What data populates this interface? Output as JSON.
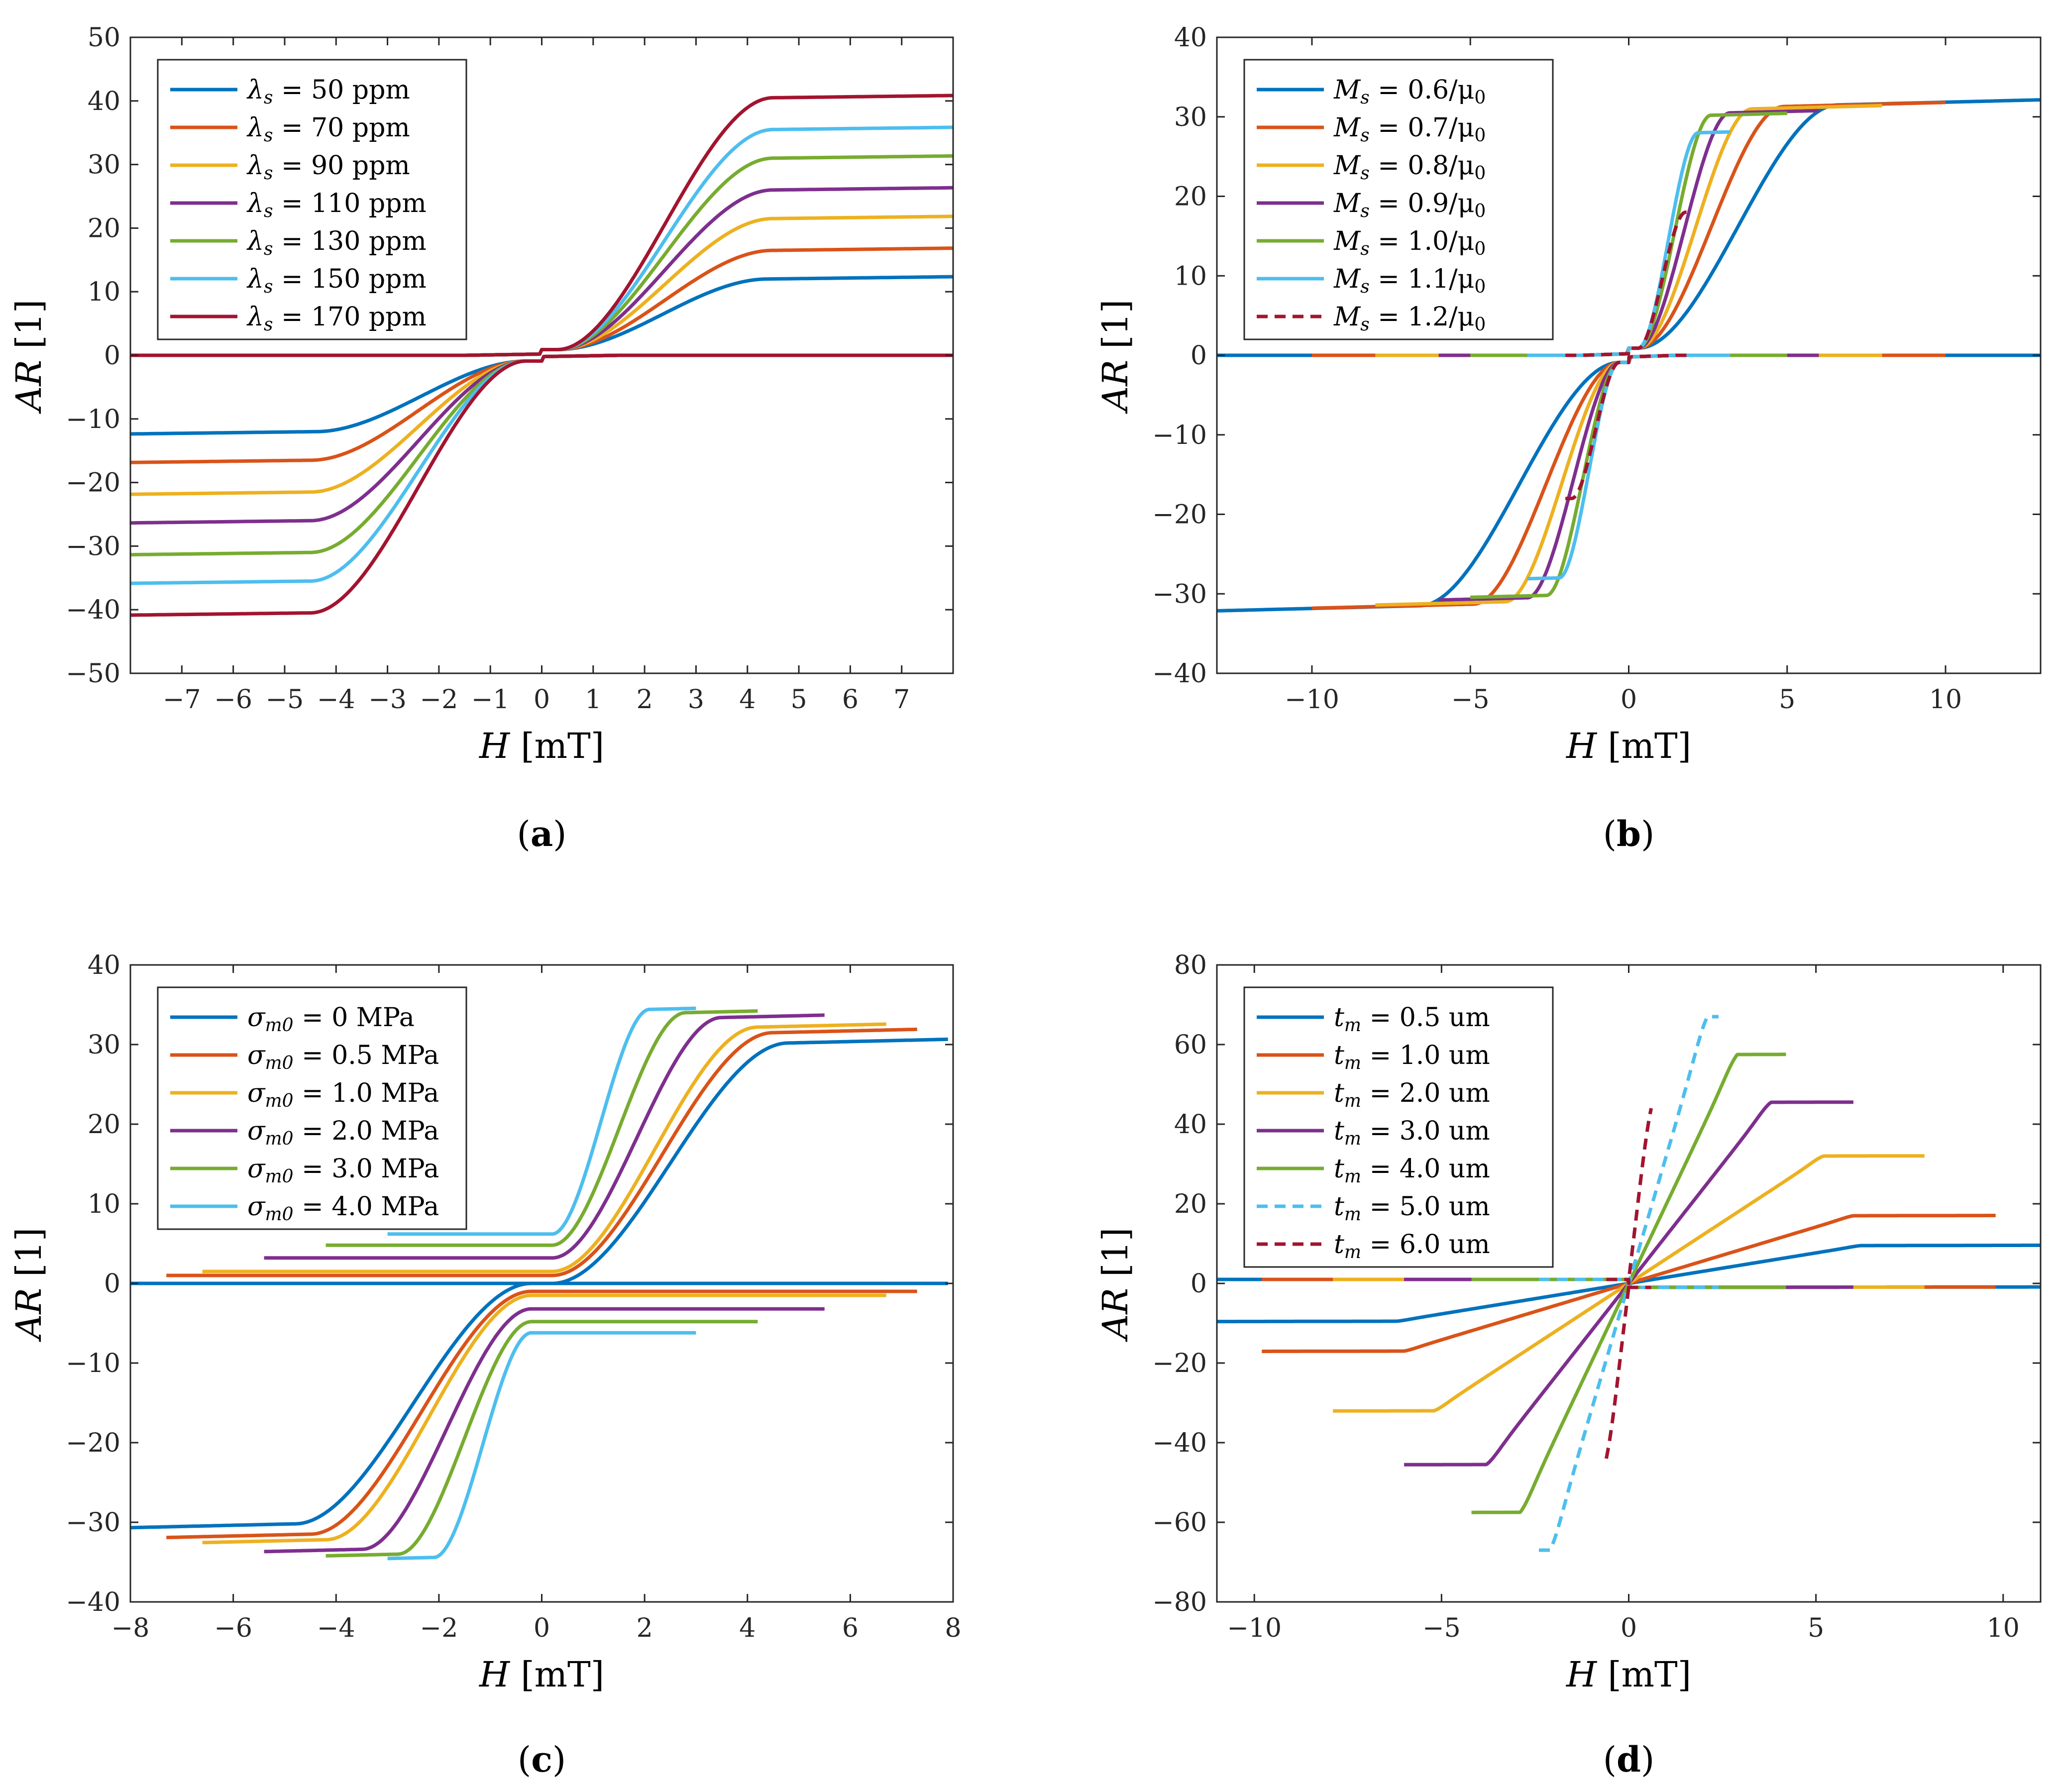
{
  "colors": [
    "#0072BD",
    "#D95319",
    "#EDB120",
    "#7E2F8E",
    "#77AC30",
    "#4DBEEE",
    "#A2142F"
  ],
  "chart_data": [
    {
      "id": "a",
      "type": "line",
      "caption_letter": "a",
      "xlabel_var": "H",
      "xlabel_unit": "[mT]",
      "ylabel_var": "AR",
      "ylabel_unit": "[1]",
      "xlim": [
        -8,
        8
      ],
      "ylim": [
        -50,
        50
      ],
      "xticks": [
        -7,
        -6,
        -5,
        -4,
        -3,
        -2,
        -1,
        0,
        1,
        2,
        3,
        4,
        5,
        6,
        7
      ],
      "yticks": [
        -50,
        -40,
        -30,
        -20,
        -10,
        0,
        10,
        20,
        30,
        40,
        50
      ],
      "legend_position": "top-left",
      "shape": "sat",
      "series": [
        {
          "sym": "λ",
          "sub": "s",
          "value": "50 ppm",
          "sat": 12,
          "hc": 0,
          "hk": 4.4,
          "xmin": -8,
          "xmax": 8,
          "r": 1,
          "dash": false
        },
        {
          "sym": "λ",
          "sub": "s",
          "value": "70 ppm",
          "sat": 16.5,
          "hc": 0,
          "hk": 4.5,
          "xmin": -8,
          "xmax": 8,
          "r": 1,
          "dash": false
        },
        {
          "sym": "λ",
          "sub": "s",
          "value": "90 ppm",
          "sat": 21.5,
          "hc": 0,
          "hk": 4.5,
          "xmin": -8,
          "xmax": 8,
          "r": 1,
          "dash": false
        },
        {
          "sym": "λ",
          "sub": "s",
          "value": "110 ppm",
          "sat": 26,
          "hc": 0,
          "hk": 4.5,
          "xmin": -8,
          "xmax": 8,
          "r": 1,
          "dash": false
        },
        {
          "sym": "λ",
          "sub": "s",
          "value": "130 ppm",
          "sat": 31,
          "hc": 0,
          "hk": 4.5,
          "xmin": -8,
          "xmax": 8,
          "r": 1,
          "dash": false
        },
        {
          "sym": "λ",
          "sub": "s",
          "value": "150 ppm",
          "sat": 35.5,
          "hc": 0,
          "hk": 4.5,
          "xmin": -8,
          "xmax": 8,
          "r": 1,
          "dash": false
        },
        {
          "sym": "λ",
          "sub": "s",
          "value": "170 ppm",
          "sat": 40.5,
          "hc": 0,
          "hk": 4.5,
          "xmin": -8,
          "xmax": 8,
          "r": 1,
          "dash": false
        }
      ]
    },
    {
      "id": "b",
      "type": "line",
      "caption_letter": "b",
      "xlabel_var": "H",
      "xlabel_unit": "[mT]",
      "ylabel_var": "AR",
      "ylabel_unit": "[1]",
      "xlim": [
        -13,
        13
      ],
      "ylim": [
        -40,
        40
      ],
      "xticks": [
        -10,
        -5,
        0,
        5,
        10
      ],
      "yticks": [
        -40,
        -30,
        -20,
        -10,
        0,
        10,
        20,
        30,
        40
      ],
      "legend_position": "top-left",
      "shape": "hys",
      "series": [
        {
          "sym": "M",
          "sub": "s",
          "value": "0.6/μ",
          "sub2": "0",
          "sat": 31.5,
          "hc": 0.6,
          "hk": 6.6,
          "xmin": -13,
          "xmax": 13,
          "r": 1,
          "dash": false
        },
        {
          "sym": "M",
          "sub": "s",
          "value": "0.7/μ",
          "sub2": "0",
          "sat": 31.3,
          "hc": 0.6,
          "hk": 4.9,
          "xmin": -10,
          "xmax": 10,
          "r": 1,
          "dash": false
        },
        {
          "sym": "M",
          "sub": "s",
          "value": "0.8/μ",
          "sub2": "0",
          "sat": 31,
          "hc": 0.6,
          "hk": 3.9,
          "xmin": -8,
          "xmax": 8,
          "r": 1,
          "dash": false
        },
        {
          "sym": "M",
          "sub": "s",
          "value": "0.9/μ",
          "sub2": "0",
          "sat": 30.5,
          "hc": 0.6,
          "hk": 3.2,
          "xmin": -6,
          "xmax": 6,
          "r": 1,
          "dash": false
        },
        {
          "sym": "M",
          "sub": "s",
          "value": "1.0/μ",
          "sub2": "0",
          "sat": 30.2,
          "hc": 0.6,
          "hk": 2.6,
          "xmin": -5,
          "xmax": 5,
          "r": 1,
          "dash": false
        },
        {
          "sym": "M",
          "sub": "s",
          "value": "1.1/μ",
          "sub2": "0",
          "sat": 28,
          "hc": 0.6,
          "hk": 2.2,
          "xmin": -3.2,
          "xmax": 3.2,
          "r": 1,
          "dash": false
        },
        {
          "sym": "M",
          "sub": "s",
          "value": "1.2/μ",
          "sub2": "0",
          "sat": 18,
          "hc": 0.6,
          "hk": 1.8,
          "xmin": -2,
          "xmax": 2,
          "r": 1,
          "dash": true
        }
      ]
    },
    {
      "id": "c",
      "type": "line",
      "caption_letter": "c",
      "xlabel_var": "H",
      "xlabel_unit": "[mT]",
      "ylabel_var": "AR",
      "ylabel_unit": "[1]",
      "xlim": [
        -8,
        8
      ],
      "ylim": [
        -40,
        40
      ],
      "xticks": [
        -8,
        -6,
        -4,
        -2,
        0,
        2,
        4,
        6,
        8
      ],
      "yticks": [
        -40,
        -30,
        -20,
        -10,
        0,
        10,
        20,
        30,
        40
      ],
      "legend_position": "top-left",
      "shape": "bias",
      "series": [
        {
          "sym": "σ",
          "sub": "m0",
          "value": "0 MPa",
          "sat": 30.5,
          "off": 0,
          "hc": 0.2,
          "hk": 4.8,
          "xmin": -8,
          "xmax": 7.9,
          "r": 1,
          "dash": false
        },
        {
          "sym": "σ",
          "sub": "m0",
          "value": "0.5 MPa",
          "sat": 30.8,
          "off": 1,
          "hc": 0.2,
          "hk": 4.5,
          "xmin": -7.3,
          "xmax": 7.3,
          "r": 1,
          "dash": false
        },
        {
          "sym": "σ",
          "sub": "m0",
          "value": "1.0 MPa",
          "sat": 31,
          "off": 1.5,
          "hc": 0.2,
          "hk": 4.2,
          "xmin": -6.6,
          "xmax": 6.7,
          "r": 1,
          "dash": false
        },
        {
          "sym": "σ",
          "sub": "m0",
          "value": "2.0 MPa",
          "sat": 30.5,
          "off": 3.2,
          "hc": 0.2,
          "hk": 3.5,
          "xmin": -5.4,
          "xmax": 5.5,
          "r": 1,
          "dash": false
        },
        {
          "sym": "σ",
          "sub": "m0",
          "value": "3.0 MPa",
          "sat": 29.5,
          "off": 4.8,
          "hc": 0.2,
          "hk": 2.8,
          "xmin": -4.2,
          "xmax": 4.2,
          "r": 1,
          "dash": false
        },
        {
          "sym": "σ",
          "sub": "m0",
          "value": "4.0 MPa",
          "sat": 28.5,
          "off": 6.2,
          "hc": 0.2,
          "hk": 2.1,
          "xmin": -3,
          "xmax": 3,
          "r": 1,
          "dash": false
        }
      ]
    },
    {
      "id": "d",
      "type": "line",
      "caption_letter": "d",
      "xlabel_var": "H",
      "xlabel_unit": "[mT]",
      "ylabel_var": "AR",
      "ylabel_unit": "[1]",
      "xlim": [
        -11,
        11
      ],
      "ylim": [
        -80,
        80
      ],
      "xticks": [
        -10,
        -5,
        0,
        5,
        10
      ],
      "yticks": [
        -80,
        -60,
        -40,
        -20,
        0,
        20,
        40,
        60,
        80
      ],
      "legend_position": "top-left",
      "shape": "tilt",
      "series": [
        {
          "sym": "t",
          "sub": "m",
          "value": "0.5 um",
          "sat": 9.5,
          "hc": 0,
          "hk": 6.2,
          "xmin": -11,
          "xmax": 11,
          "r": 1,
          "dash": false
        },
        {
          "sym": "t",
          "sub": "m",
          "value": "1.0 um",
          "sat": 17,
          "hc": 0,
          "hk": 6,
          "xmin": -9.8,
          "xmax": 9.8,
          "r": 1,
          "dash": false
        },
        {
          "sym": "t",
          "sub": "m",
          "value": "2.0 um",
          "sat": 32,
          "hc": 0,
          "hk": 5.2,
          "xmin": -7.9,
          "xmax": 7.9,
          "r": 1,
          "dash": false
        },
        {
          "sym": "t",
          "sub": "m",
          "value": "3.0 um",
          "sat": 45.5,
          "hc": 0,
          "hk": 3.8,
          "xmin": -6,
          "xmax": 6,
          "r": 1,
          "dash": false
        },
        {
          "sym": "t",
          "sub": "m",
          "value": "4.0 um",
          "sat": 57.5,
          "hc": 0,
          "hk": 2.9,
          "xmin": -4.2,
          "xmax": 4.2,
          "r": 1,
          "dash": false
        },
        {
          "sym": "t",
          "sub": "m",
          "value": "5.0 um",
          "sat": 67,
          "hc": 0,
          "hk": 2.1,
          "xmin": -2.4,
          "xmax": 2.4,
          "r": 1,
          "dash": true
        },
        {
          "sym": "t",
          "sub": "m",
          "value": "6.0 um",
          "sat": 44,
          "hc": 0,
          "hk": 0.6,
          "xmin": -0.6,
          "xmax": 0.6,
          "r": 1,
          "dash": true
        }
      ]
    }
  ]
}
